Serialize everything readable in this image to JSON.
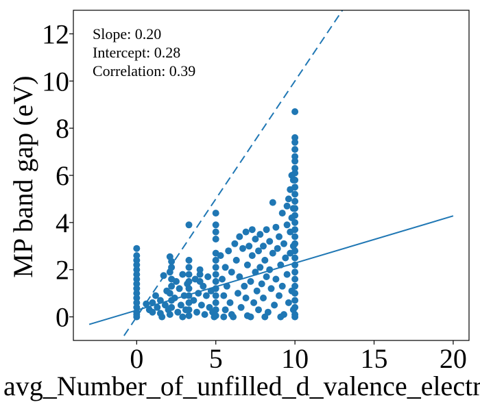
{
  "chart_data": {
    "type": "scatter",
    "xlabel": "avg_Number_of_unfilled_d_valence_electrons",
    "ylabel": "MP band gap (eV)",
    "xlim": [
      -4,
      21
    ],
    "ylim": [
      -1,
      13
    ],
    "xticks": [
      0,
      5,
      10,
      15,
      20
    ],
    "yticks": [
      0,
      2,
      4,
      6,
      8,
      10,
      12
    ],
    "grid": false,
    "annotations": [
      "Slope: 0.20",
      "Intercept: 0.28",
      "Correlation: 0.39"
    ],
    "color": "#1f77b4",
    "fit_line": {
      "slope": 0.2,
      "intercept": 0.28,
      "x": [
        -3,
        20
      ],
      "style": "solid"
    },
    "identity_line": {
      "slope": 1,
      "intercept": 0,
      "x": [
        -0.8,
        13
      ],
      "style": "dashed"
    },
    "series": [
      {
        "type": "scatter",
        "points": [
          [
            0,
            2.9
          ],
          [
            0,
            2.6
          ],
          [
            0,
            2.4
          ],
          [
            0,
            2.2
          ],
          [
            0,
            2.0
          ],
          [
            0,
            1.8
          ],
          [
            0,
            1.6
          ],
          [
            0,
            1.4
          ],
          [
            0,
            1.2
          ],
          [
            0,
            1.0
          ],
          [
            0,
            0.8
          ],
          [
            0,
            0.6
          ],
          [
            0,
            0.4
          ],
          [
            0,
            0.2
          ],
          [
            0,
            0.1
          ],
          [
            0,
            0.0
          ],
          [
            0.6,
            0.55
          ],
          [
            0.8,
            0.3
          ],
          [
            1.0,
            0.6
          ],
          [
            1.0,
            0.2
          ],
          [
            1.2,
            0.9
          ],
          [
            1.3,
            0.4
          ],
          [
            1.5,
            0.7
          ],
          [
            1.5,
            0.15
          ],
          [
            1.7,
            1.75
          ],
          [
            1.8,
            0.5
          ],
          [
            1.9,
            1.1
          ],
          [
            2.0,
            0.3
          ],
          [
            2.1,
            2.55
          ],
          [
            2.2,
            2.35
          ],
          [
            2.2,
            2.1
          ],
          [
            2.1,
            1.9
          ],
          [
            2.2,
            1.6
          ],
          [
            2.2,
            1.3
          ],
          [
            2.1,
            1.0
          ],
          [
            2.2,
            0.7
          ],
          [
            2.2,
            0.4
          ],
          [
            2.1,
            0.1
          ],
          [
            2.4,
            0.8
          ],
          [
            2.5,
            1.5
          ],
          [
            2.6,
            0.2
          ],
          [
            2.7,
            1.2
          ],
          [
            2.8,
            0.5
          ],
          [
            2.9,
            1.8
          ],
          [
            3.0,
            0.9
          ],
          [
            3.1,
            0.3
          ],
          [
            3.2,
            1.4
          ],
          [
            3.3,
            3.9
          ],
          [
            3.3,
            2.4
          ],
          [
            3.3,
            2.1
          ],
          [
            3.3,
            1.8
          ],
          [
            3.3,
            1.5
          ],
          [
            3.3,
            1.2
          ],
          [
            3.3,
            0.9
          ],
          [
            3.3,
            0.6
          ],
          [
            3.3,
            0.3
          ],
          [
            3.3,
            0.05
          ],
          [
            3.6,
            0.7
          ],
          [
            3.7,
            1.6
          ],
          [
            3.8,
            0.2
          ],
          [
            3.9,
            1.0
          ],
          [
            4.0,
            2.0
          ],
          [
            4.0,
            1.8
          ],
          [
            4.0,
            1.5
          ],
          [
            4.1,
            0.5
          ],
          [
            4.2,
            1.3
          ],
          [
            4.3,
            0.1
          ],
          [
            4.4,
            0.9
          ],
          [
            4.5,
            1.7
          ],
          [
            4.6,
            0.4
          ],
          [
            4.7,
            1.1
          ],
          [
            4.8,
            0.2
          ],
          [
            5.0,
            4.4
          ],
          [
            5.0,
            3.9
          ],
          [
            5.0,
            3.6
          ],
          [
            5.0,
            3.3
          ],
          [
            5.0,
            2.7
          ],
          [
            5.0,
            2.4
          ],
          [
            5.0,
            2.1
          ],
          [
            5.0,
            1.8
          ],
          [
            5.0,
            1.5
          ],
          [
            5.0,
            1.2
          ],
          [
            5.0,
            0.9
          ],
          [
            5.0,
            0.6
          ],
          [
            5.0,
            0.3
          ],
          [
            5.0,
            0.05
          ],
          [
            5.3,
            2.6
          ],
          [
            5.4,
            1.6
          ],
          [
            5.5,
            0.9
          ],
          [
            5.6,
            2.1
          ],
          [
            5.6,
            0.3
          ],
          [
            5.7,
            1.3
          ],
          [
            5.8,
            2.8
          ],
          [
            5.9,
            0.6
          ],
          [
            6.0,
            1.9
          ],
          [
            6.0,
            0.1
          ],
          [
            6.2,
            3.1
          ],
          [
            6.3,
            2.4
          ],
          [
            6.4,
            1.0
          ],
          [
            6.5,
            3.4
          ],
          [
            6.5,
            1.7
          ],
          [
            6.6,
            0.4
          ],
          [
            6.7,
            2.9
          ],
          [
            6.8,
            1.3
          ],
          [
            6.9,
            3.6
          ],
          [
            6.9,
            0.8
          ],
          [
            7.0,
            2.2
          ],
          [
            7.0,
            0.05
          ],
          [
            7.1,
            3.0
          ],
          [
            7.2,
            1.5
          ],
          [
            7.3,
            3.7
          ],
          [
            7.3,
            2.6
          ],
          [
            7.4,
            0.6
          ],
          [
            7.5,
            3.3
          ],
          [
            7.5,
            1.9
          ],
          [
            7.6,
            1.1
          ],
          [
            7.7,
            2.8
          ],
          [
            7.7,
            0.3
          ],
          [
            7.8,
            3.5
          ],
          [
            7.8,
            2.1
          ],
          [
            7.9,
            1.4
          ],
          [
            8.0,
            3.0
          ],
          [
            8.0,
            0.8
          ],
          [
            8.1,
            2.4
          ],
          [
            8.2,
            3.7
          ],
          [
            8.2,
            1.7
          ],
          [
            8.3,
            0.2
          ],
          [
            8.4,
            3.2
          ],
          [
            8.4,
            2.0
          ],
          [
            8.5,
            1.2
          ],
          [
            8.6,
            4.85
          ],
          [
            8.6,
            2.7
          ],
          [
            8.7,
            0.5
          ],
          [
            8.8,
            3.8
          ],
          [
            8.8,
            1.6
          ],
          [
            8.9,
            2.9
          ],
          [
            9.0,
            0.9
          ],
          [
            9.0,
            3.4
          ],
          [
            9.1,
            2.2
          ],
          [
            9.2,
            4.4
          ],
          [
            9.2,
            1.3
          ],
          [
            9.3,
            3.1
          ],
          [
            9.3,
            0.1
          ],
          [
            9.4,
            2.5
          ],
          [
            9.5,
            3.9
          ],
          [
            9.5,
            1.8
          ],
          [
            9.6,
            0.6
          ],
          [
            9.7,
            3.6
          ],
          [
            9.7,
            2.7
          ],
          [
            9.8,
            4.2
          ],
          [
            9.8,
            1.1
          ],
          [
            9.9,
            3.0
          ],
          [
            9.9,
            0.3
          ],
          [
            10.0,
            8.7
          ],
          [
            10.0,
            7.6
          ],
          [
            10.0,
            7.4
          ],
          [
            10.0,
            7.1
          ],
          [
            10.0,
            6.8
          ],
          [
            10.0,
            6.6
          ],
          [
            10.0,
            6.3
          ],
          [
            10.0,
            6.1
          ],
          [
            10.0,
            5.8
          ],
          [
            10.0,
            5.5
          ],
          [
            10.0,
            5.2
          ],
          [
            10.0,
            4.9
          ],
          [
            10.0,
            4.6
          ],
          [
            10.0,
            4.3
          ],
          [
            10.0,
            4.0
          ],
          [
            10.0,
            3.7
          ],
          [
            10.0,
            3.4
          ],
          [
            10.0,
            3.1
          ],
          [
            10.0,
            2.8
          ],
          [
            10.0,
            2.5
          ],
          [
            10.0,
            2.2
          ],
          [
            10.0,
            1.9
          ],
          [
            10.0,
            1.6
          ],
          [
            10.0,
            1.3
          ],
          [
            10.0,
            1.0
          ],
          [
            10.0,
            0.7
          ],
          [
            10.0,
            0.4
          ],
          [
            10.0,
            0.1
          ],
          [
            10.0,
            0.0
          ],
          [
            9.8,
            6.0
          ],
          [
            9.9,
            5.8
          ],
          [
            9.7,
            5.4
          ],
          [
            9.6,
            5.0
          ],
          [
            9.9,
            4.6
          ],
          [
            9.5,
            4.7
          ],
          [
            6.1,
            0.0
          ],
          [
            7.2,
            0.0
          ],
          [
            8.1,
            0.0
          ],
          [
            9.1,
            0.0
          ],
          [
            5.5,
            0.0
          ],
          [
            4.9,
            0.0
          ],
          [
            2.9,
            0.0
          ],
          [
            1.6,
            0.0
          ]
        ]
      }
    ]
  }
}
